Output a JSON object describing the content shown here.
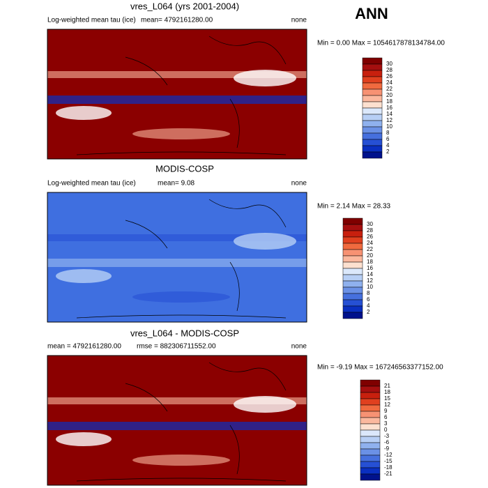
{
  "header": {
    "season": "ANN"
  },
  "palette": [
    "#7f0000",
    "#a50f0f",
    "#c8200e",
    "#e0401f",
    "#f06a3f",
    "#f79273",
    "#fbb89e",
    "#fde0cf",
    "#dbe8fb",
    "#b7cff5",
    "#8fb1ee",
    "#6b91e6",
    "#4670de",
    "#2650d4",
    "#0a2fc0",
    "#00128c"
  ],
  "panels": [
    {
      "title": "vres_L064 (yrs 2001-2004)",
      "left": "Log-weighted mean tau (ice)",
      "middle": "mean= 4792161280.00",
      "right": "none",
      "range": "Min =   0.00 Max = 1054617878134784.00",
      "map_color": "#8b0000",
      "colorbar_labels": [
        "30",
        "28",
        "26",
        "24",
        "22",
        "20",
        "18",
        "16",
        "14",
        "12",
        "10",
        "8",
        "6",
        "4",
        "2"
      ]
    },
    {
      "title": "MODIS-COSP",
      "left": "Log-weighted mean tau (ice)",
      "middle": "mean=   9.08",
      "right": "none",
      "range": "Min =   2.14 Max =  28.33",
      "map_color": "#3f6fe0",
      "colorbar_labels": [
        "30",
        "28",
        "26",
        "24",
        "22",
        "20",
        "18",
        "16",
        "14",
        "12",
        "10",
        "8",
        "6",
        "4",
        "2"
      ]
    },
    {
      "title": "vres_L064 - MODIS-COSP",
      "left": "mean = 4792161280.00",
      "middle": "rmse = 882306711552.00",
      "right": "none",
      "range": "Min =  -9.19 Max = 167246563377152.00",
      "map_color": "#8b0000",
      "colorbar_labels": [
        "21",
        "18",
        "15",
        "12",
        "9",
        "6",
        "3",
        "0",
        "-3",
        "-6",
        "-9",
        "-12",
        "-15",
        "-18",
        "-21"
      ]
    }
  ]
}
